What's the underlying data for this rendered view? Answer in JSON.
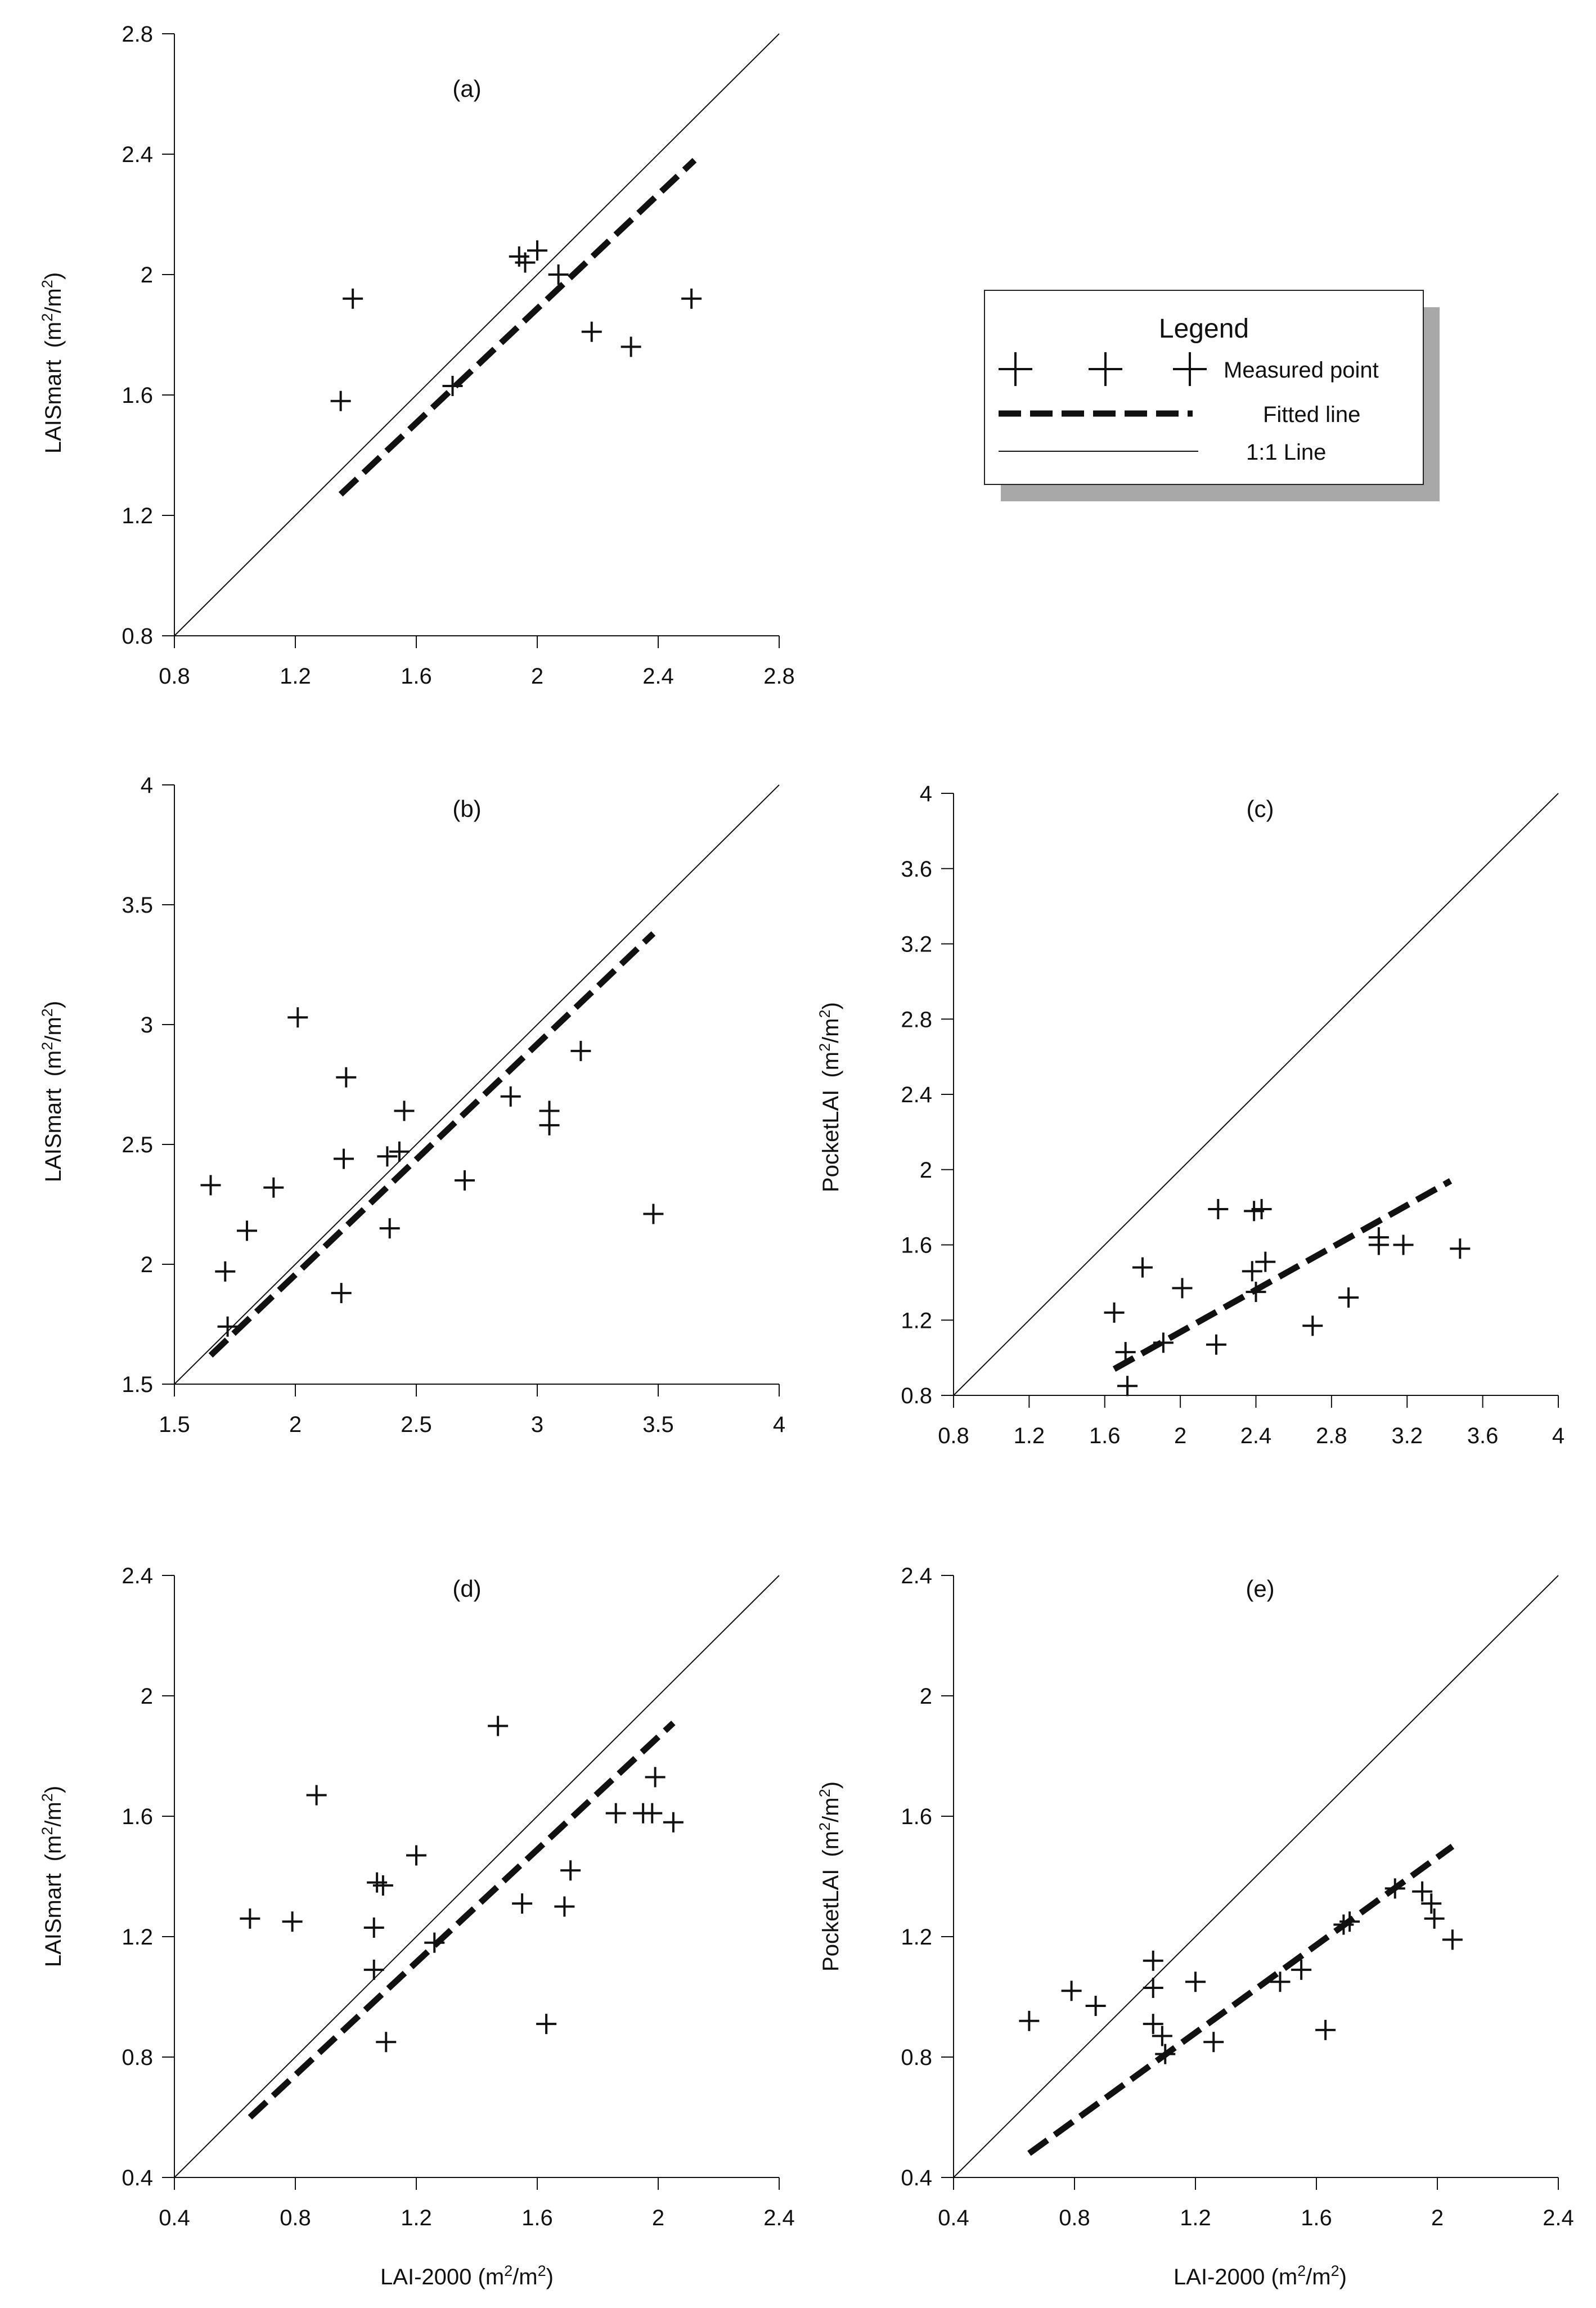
{
  "figure": {
    "legend": {
      "title": "Legend",
      "entries": [
        {
          "label": "Measured point",
          "kind": "marker"
        },
        {
          "label": "Fitted line",
          "kind": "dashed"
        },
        {
          "label": "1:1 Line",
          "kind": "solid"
        }
      ]
    }
  },
  "chart_data": [
    {
      "id": "a",
      "type": "scatter",
      "title": "(a)",
      "xlabel": "",
      "ylabel_main": "LAISmart",
      "ylabel_unit": "(m2/m2)",
      "xlim": [
        0.8,
        2.8
      ],
      "ylim": [
        0.8,
        2.8
      ],
      "xticks": [
        "0.8",
        "1.2",
        "1.6",
        "2",
        "2.4",
        "2.8"
      ],
      "yticks": [
        "0.8",
        "1.2",
        "1.6",
        "2",
        "2.4",
        "2.8"
      ],
      "points": [
        [
          1.35,
          1.58
        ],
        [
          1.39,
          1.92
        ],
        [
          1.72,
          1.63
        ],
        [
          1.94,
          2.06
        ],
        [
          1.96,
          2.04
        ],
        [
          2.0,
          2.08
        ],
        [
          2.07,
          2.0
        ],
        [
          2.18,
          1.81
        ],
        [
          2.31,
          1.76
        ],
        [
          2.51,
          1.92
        ]
      ],
      "fit": [
        [
          1.35,
          1.27
        ],
        [
          2.52,
          2.38
        ]
      ],
      "one_to_one": [
        0.8,
        2.8
      ]
    },
    {
      "id": "b",
      "type": "scatter",
      "title": "(b)",
      "xlabel": "",
      "ylabel_main": "LAISmart",
      "ylabel_unit": "(m2/m2)",
      "xlim": [
        1.5,
        4
      ],
      "ylim": [
        1.5,
        4
      ],
      "xticks": [
        "1.5",
        "2",
        "2.5",
        "3",
        "3.5",
        "4"
      ],
      "yticks": [
        "1.5",
        "2",
        "2.5",
        "3",
        "3.5",
        "4"
      ],
      "points": [
        [
          1.65,
          2.33
        ],
        [
          1.71,
          1.97
        ],
        [
          1.72,
          1.74
        ],
        [
          1.8,
          2.14
        ],
        [
          1.91,
          2.32
        ],
        [
          2.01,
          3.03
        ],
        [
          2.19,
          1.88
        ],
        [
          2.2,
          2.44
        ],
        [
          2.21,
          2.78
        ],
        [
          2.38,
          2.45
        ],
        [
          2.39,
          2.15
        ],
        [
          2.43,
          2.47
        ],
        [
          2.45,
          2.64
        ],
        [
          2.7,
          2.35
        ],
        [
          2.89,
          2.7
        ],
        [
          3.05,
          2.64
        ],
        [
          3.05,
          2.58
        ],
        [
          3.18,
          2.89
        ],
        [
          3.48,
          2.21
        ]
      ],
      "fit": [
        [
          1.65,
          1.62
        ],
        [
          3.48,
          3.38
        ]
      ],
      "one_to_one": [
        1.5,
        4
      ]
    },
    {
      "id": "c",
      "type": "scatter",
      "title": "(c)",
      "xlabel": "",
      "ylabel_main": "PocketLAI",
      "ylabel_unit": "(m2/m2)",
      "xlim": [
        0.8,
        4
      ],
      "ylim": [
        0.8,
        4
      ],
      "xticks": [
        "0.8",
        "1.2",
        "1.6",
        "2",
        "2.4",
        "2.8",
        "3.2",
        "3.6",
        "4"
      ],
      "yticks": [
        "0.8",
        "1.2",
        "1.6",
        "2",
        "2.4",
        "2.8",
        "3.2",
        "3.6",
        "4"
      ],
      "points": [
        [
          1.65,
          1.24
        ],
        [
          1.71,
          1.03
        ],
        [
          1.72,
          0.85
        ],
        [
          1.8,
          1.48
        ],
        [
          1.91,
          1.08
        ],
        [
          2.01,
          1.37
        ],
        [
          2.19,
          1.07
        ],
        [
          2.2,
          1.79
        ],
        [
          2.38,
          1.46
        ],
        [
          2.39,
          1.78
        ],
        [
          2.4,
          1.35
        ],
        [
          2.43,
          1.79
        ],
        [
          2.45,
          1.51
        ],
        [
          2.7,
          1.17
        ],
        [
          2.89,
          1.32
        ],
        [
          3.05,
          1.64
        ],
        [
          3.05,
          1.6
        ],
        [
          3.18,
          1.6
        ],
        [
          3.48,
          1.58
        ]
      ],
      "fit": [
        [
          1.65,
          0.94
        ],
        [
          3.43,
          1.94
        ]
      ],
      "one_to_one": [
        0.8,
        4
      ]
    },
    {
      "id": "d",
      "type": "scatter",
      "title": "(d)",
      "xlabel": "LAI-2000 (m2/m2)",
      "ylabel_main": "LAISmart",
      "ylabel_unit": "(m2/m2)",
      "xlim": [
        0.4,
        2.4
      ],
      "ylim": [
        0.4,
        2.4
      ],
      "xticks": [
        "0.4",
        "0.8",
        "1.2",
        "1.6",
        "2",
        "2.4"
      ],
      "yticks": [
        "0.4",
        "0.8",
        "1.2",
        "1.6",
        "2",
        "2.4"
      ],
      "points": [
        [
          0.65,
          1.26
        ],
        [
          0.79,
          1.25
        ],
        [
          0.87,
          1.67
        ],
        [
          1.06,
          1.23
        ],
        [
          1.06,
          1.09
        ],
        [
          1.07,
          1.38
        ],
        [
          1.09,
          1.37
        ],
        [
          1.1,
          0.85
        ],
        [
          1.2,
          1.47
        ],
        [
          1.26,
          1.18
        ],
        [
          1.47,
          1.9
        ],
        [
          1.55,
          1.31
        ],
        [
          1.63,
          0.91
        ],
        [
          1.69,
          1.3
        ],
        [
          1.71,
          1.42
        ],
        [
          1.86,
          1.61
        ],
        [
          1.95,
          1.61
        ],
        [
          1.98,
          1.61
        ],
        [
          1.99,
          1.73
        ],
        [
          2.05,
          1.58
        ]
      ],
      "fit": [
        [
          0.65,
          0.6
        ],
        [
          2.05,
          1.91
        ]
      ],
      "one_to_one": [
        0.4,
        2.4
      ]
    },
    {
      "id": "e",
      "type": "scatter",
      "title": "(e)",
      "xlabel": "LAI-2000 (m2/m2)",
      "ylabel_main": "PocketLAI",
      "ylabel_unit": "(m2/m2)",
      "xlim": [
        0.4,
        2.4
      ],
      "ylim": [
        0.4,
        2.4
      ],
      "xticks": [
        "0.4",
        "0.8",
        "1.2",
        "1.6",
        "2",
        "2.4"
      ],
      "yticks": [
        "0.4",
        "0.8",
        "1.2",
        "1.6",
        "2",
        "2.4"
      ],
      "points": [
        [
          0.65,
          0.92
        ],
        [
          0.79,
          1.02
        ],
        [
          0.87,
          0.97
        ],
        [
          1.06,
          1.12
        ],
        [
          1.06,
          1.03
        ],
        [
          1.06,
          0.91
        ],
        [
          1.09,
          0.87
        ],
        [
          1.1,
          0.81
        ],
        [
          1.2,
          1.05
        ],
        [
          1.26,
          0.85
        ],
        [
          1.48,
          1.05
        ],
        [
          1.55,
          1.09
        ],
        [
          1.63,
          0.89
        ],
        [
          1.69,
          1.24
        ],
        [
          1.71,
          1.25
        ],
        [
          1.86,
          1.36
        ],
        [
          1.95,
          1.35
        ],
        [
          1.98,
          1.31
        ],
        [
          1.99,
          1.26
        ],
        [
          2.05,
          1.19
        ]
      ],
      "fit": [
        [
          0.65,
          0.48
        ],
        [
          2.05,
          1.5
        ]
      ],
      "one_to_one": [
        0.4,
        2.4
      ]
    }
  ]
}
